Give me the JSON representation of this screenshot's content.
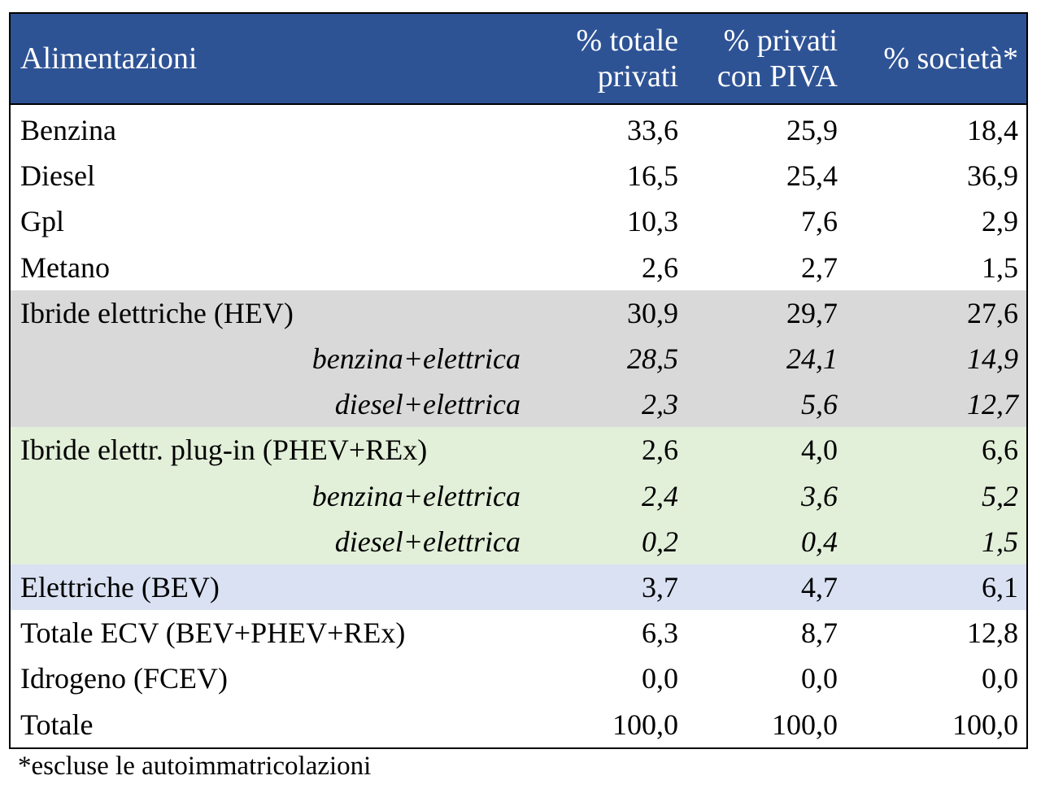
{
  "header": {
    "col0": "Alimentazioni",
    "col1_line1": "% totale",
    "col1_line2": "privati",
    "col2_line1": "% privati",
    "col2_line2": "con PIVA",
    "col3": "% società*"
  },
  "colors": {
    "header_bg": "#2e5395",
    "hev_bg": "#d9d9d9",
    "phev_bg": "#e2efd9",
    "bev_bg": "#d9e1f2"
  },
  "rows": [
    {
      "label": "Benzina",
      "v1": "33,6",
      "v2": "25,9",
      "v3": "18,4"
    },
    {
      "label": "Diesel",
      "v1": "16,5",
      "v2": "25,4",
      "v3": "36,9"
    },
    {
      "label": "Gpl",
      "v1": "10,3",
      "v2": "7,6",
      "v3": "2,9"
    },
    {
      "label": "Metano",
      "v1": "2,6",
      "v2": "2,7",
      "v3": "1,5"
    },
    {
      "label": "Ibride elettriche (HEV)",
      "v1": "30,9",
      "v2": "29,7",
      "v3": "27,6"
    },
    {
      "label": "benzina+elettrica",
      "v1": "28,5",
      "v2": "24,1",
      "v3": "14,9"
    },
    {
      "label": "diesel+elettrica",
      "v1": "2,3",
      "v2": "5,6",
      "v3": "12,7"
    },
    {
      "label": "Ibride elettr. plug-in (PHEV+REx)",
      "v1": "2,6",
      "v2": "4,0",
      "v3": "6,6"
    },
    {
      "label": "benzina+elettrica",
      "v1": "2,4",
      "v2": "3,6",
      "v3": "5,2"
    },
    {
      "label": "diesel+elettrica",
      "v1": "0,2",
      "v2": "0,4",
      "v3": "1,5"
    },
    {
      "label": "Elettriche (BEV)",
      "v1": "3,7",
      "v2": "4,7",
      "v3": "6,1"
    },
    {
      "label": "Totale ECV (BEV+PHEV+REx)",
      "v1": "6,3",
      "v2": "8,7",
      "v3": "12,8"
    },
    {
      "label": "Idrogeno (FCEV)",
      "v1": "0,0",
      "v2": "0,0",
      "v3": "0,0"
    },
    {
      "label": "Totale",
      "v1": "100,0",
      "v2": "100,0",
      "v3": "100,0"
    }
  ],
  "footnote": "*escluse le autoimmatricolazioni"
}
